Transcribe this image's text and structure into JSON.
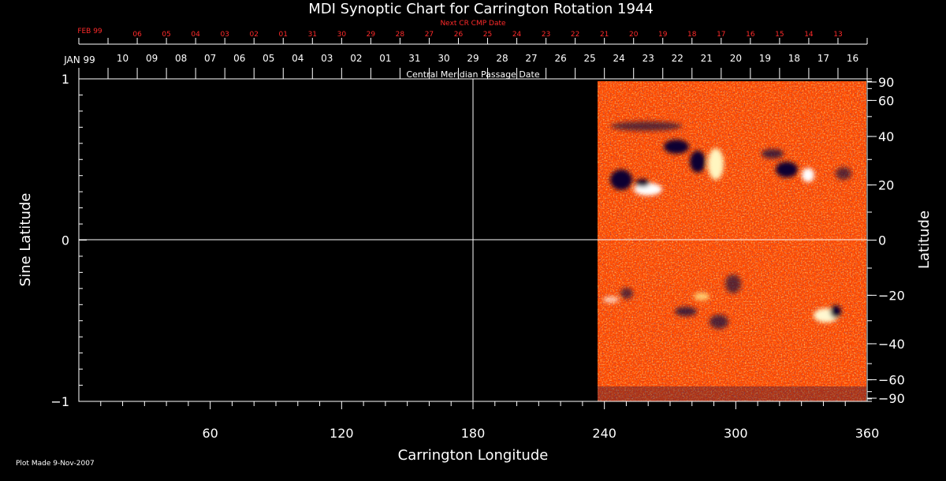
{
  "colors": {
    "background": "#000000",
    "axis": "#ffffff",
    "next_cr": "#ff2a2a",
    "map_base": "#ff4a00"
  },
  "chart_data": {
    "type": "heatmap",
    "title": "MDI Synoptic Chart for Carrington Rotation 1944",
    "xlabel": "Carrington Longitude",
    "ylabel": "Sine Latitude",
    "y2label": "Latitude",
    "xlim": [
      0,
      360
    ],
    "ylim": [
      -1,
      1
    ],
    "x_ticks": [
      "60",
      "120",
      "180",
      "240",
      "300",
      "360"
    ],
    "x_tick_values": [
      60,
      120,
      180,
      240,
      300,
      360
    ],
    "y_ticks": [
      "1",
      "0",
      "−1"
    ],
    "y_tick_values": [
      1,
      0,
      -1
    ],
    "lat_ticks": [
      "90",
      "60",
      "40",
      "20",
      "0",
      "−20",
      "−40",
      "−60",
      "−90"
    ],
    "lat_tick_values": [
      90,
      60,
      40,
      20,
      0,
      -20,
      -40,
      -60,
      -90
    ],
    "data_coverage_longitude": [
      236,
      360
    ],
    "grid_lines": {
      "x": 180,
      "y": 0
    },
    "top_axis": {
      "label": "Central Meridian Passage Date",
      "start_label": "JAN 99",
      "dates": [
        "10",
        "09",
        "08",
        "07",
        "06",
        "05",
        "04",
        "03",
        "02",
        "01",
        "31",
        "30",
        "29",
        "28",
        "27",
        "26",
        "25",
        "24",
        "23",
        "22",
        "21",
        "20",
        "19",
        "18",
        "17",
        "16"
      ]
    },
    "next_axis": {
      "label": "Next CR CMP Date",
      "start_label": "FEB 99",
      "dates": [
        "06",
        "05",
        "04",
        "03",
        "02",
        "01",
        "31",
        "30",
        "29",
        "28",
        "27",
        "26",
        "25",
        "24",
        "23",
        "22",
        "21",
        "20",
        "19",
        "18",
        "17",
        "16",
        "15",
        "14",
        "13"
      ]
    },
    "footer": "Plot Made  9-Nov-2007"
  }
}
